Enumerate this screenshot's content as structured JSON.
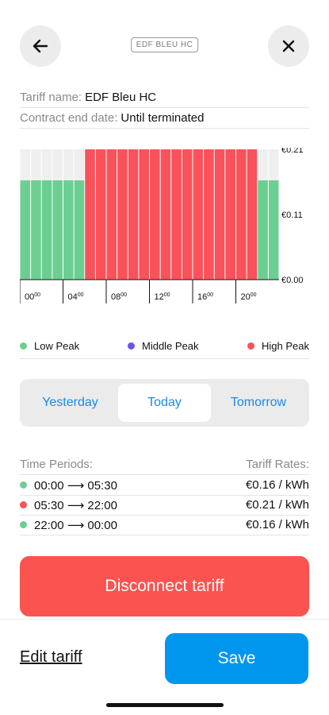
{
  "header": {
    "back_icon": "arrow-left-icon",
    "close_icon": "close-icon",
    "logo_text": "EDF BLEU HC"
  },
  "tariff": {
    "name_label": "Tariff name:",
    "name_value": "EDF Bleu HC",
    "end_label": "Contract end date:",
    "end_value": "Until terminated"
  },
  "chart_data": {
    "type": "bar",
    "x": [
      "00:00",
      "01:00",
      "02:00",
      "03:00",
      "04:00",
      "05:00",
      "06:00",
      "07:00",
      "08:00",
      "09:00",
      "10:00",
      "11:00",
      "12:00",
      "13:00",
      "14:00",
      "15:00",
      "16:00",
      "17:00",
      "18:00",
      "19:00",
      "20:00",
      "21:00",
      "22:00",
      "23:00"
    ],
    "values": [
      0.16,
      0.16,
      0.16,
      0.16,
      0.16,
      0.16,
      0.21,
      0.21,
      0.21,
      0.21,
      0.21,
      0.21,
      0.21,
      0.21,
      0.21,
      0.21,
      0.21,
      0.21,
      0.21,
      0.21,
      0.21,
      0.21,
      0.16,
      0.16
    ],
    "peak": [
      "low",
      "low",
      "low",
      "low",
      "low",
      "low",
      "high",
      "high",
      "high",
      "high",
      "high",
      "high",
      "high",
      "high",
      "high",
      "high",
      "high",
      "high",
      "high",
      "high",
      "high",
      "high",
      "low",
      "low"
    ],
    "y_ticks": [
      "€0.21",
      "€0.11",
      "€0.00"
    ],
    "x_tick_labels": [
      {
        "h": "00",
        "m": "00"
      },
      {
        "h": "04",
        "m": "00"
      },
      {
        "h": "08",
        "m": "00"
      },
      {
        "h": "12",
        "m": "00"
      },
      {
        "h": "16",
        "m": "00"
      },
      {
        "h": "20",
        "m": "00"
      }
    ],
    "ylim": [
      0,
      0.21
    ],
    "colors": {
      "low": "#6ccf92",
      "high": "#f9525a",
      "background": "#efefef"
    }
  },
  "legend": {
    "low": {
      "label": "Low Peak",
      "color": "#6ccf92"
    },
    "middle": {
      "label": "Middle Peak",
      "color": "#6a55f0"
    },
    "high": {
      "label": "High Peak",
      "color": "#f9525a"
    }
  },
  "segments": {
    "yesterday": "Yesterday",
    "today": "Today",
    "tomorrow": "Tomorrow",
    "selected": "Today"
  },
  "periods": {
    "head_left": "Time Periods:",
    "head_right": "Tariff Rates:",
    "rows": [
      {
        "range": "00:00 ⟶ 05:30",
        "rate": "€0.16 / kWh",
        "color": "#6ccf92"
      },
      {
        "range": "05:30 ⟶ 22:00",
        "rate": "€0.21 / kWh",
        "color": "#f9525a"
      },
      {
        "range": "22:00 ⟶ 00:00",
        "rate": "€0.16 / kWh",
        "color": "#6ccf92"
      }
    ]
  },
  "actions": {
    "disconnect": "Disconnect tariff",
    "edit": "Edit tariff",
    "save": "Save"
  }
}
